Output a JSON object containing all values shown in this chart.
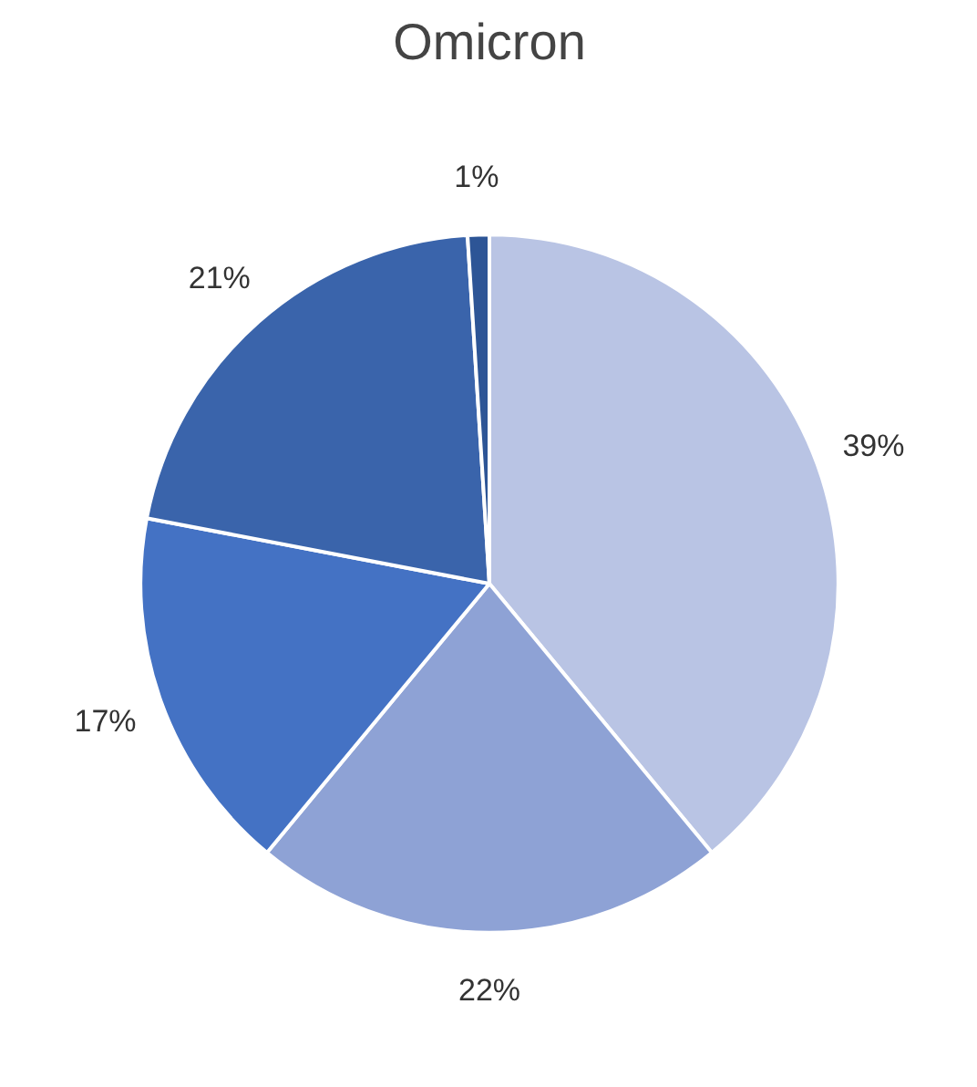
{
  "chart_data": {
    "type": "pie",
    "title": "Omicron",
    "categories": [
      null,
      null,
      null,
      null,
      null
    ],
    "values": [
      39,
      22,
      17,
      21,
      1
    ],
    "colors": [
      "#b9c4e4",
      "#8ea2d5",
      "#4472c4",
      "#3a64ab",
      "#2d5596"
    ],
    "value_labels": [
      "39%",
      "22%",
      "17%",
      "21%",
      "1%"
    ]
  }
}
